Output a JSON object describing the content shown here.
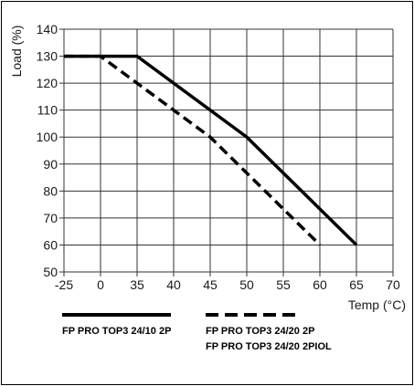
{
  "chart_data": {
    "type": "line",
    "xlabel": "Temp (°C)",
    "ylabel": "Load (%)",
    "x_ticks": [
      "-25",
      "0",
      "35",
      "40",
      "45",
      "50",
      "55",
      "60",
      "65",
      "70"
    ],
    "y_ticks": [
      50,
      60,
      70,
      80,
      90,
      100,
      110,
      120,
      130,
      140
    ],
    "ylim": [
      50,
      140
    ],
    "grid": true,
    "legend_position": "bottom",
    "series": [
      {
        "name": "FP PRO TOP3 24/10 2P",
        "style": "solid",
        "color": "#000000",
        "points": [
          [
            -25,
            130
          ],
          [
            0,
            130
          ],
          [
            35,
            130
          ],
          [
            50,
            100
          ],
          [
            65,
            60
          ]
        ]
      },
      {
        "name": "FP PRO TOP3 24/20 2P",
        "name2": "FP PRO TOP3 24/20 2PIOL",
        "style": "dashed",
        "color": "#000000",
        "points": [
          [
            -25,
            130
          ],
          [
            0,
            130
          ],
          [
            45,
            100
          ],
          [
            60,
            60
          ]
        ]
      }
    ]
  }
}
